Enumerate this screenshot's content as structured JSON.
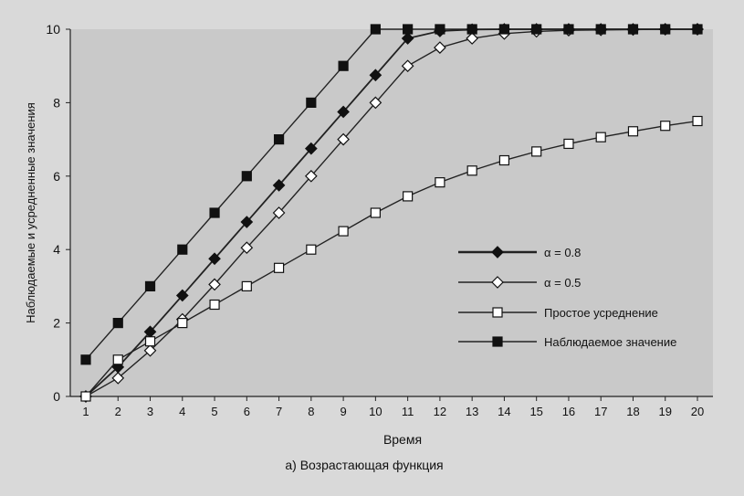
{
  "chart_data": {
    "type": "line",
    "xlabel": "Время",
    "ylabel": "Наблюдаемые и усредненные значения",
    "caption": "а) Возрастающая функция",
    "x": [
      1,
      2,
      3,
      4,
      5,
      6,
      7,
      8,
      9,
      10,
      11,
      12,
      13,
      14,
      15,
      16,
      17,
      18,
      19,
      20
    ],
    "xlim": [
      1,
      20
    ],
    "ylim": [
      0,
      10
    ],
    "yticks": [
      0,
      2,
      4,
      6,
      8,
      10
    ],
    "grid": false,
    "legend_position": "right-bottom",
    "series": [
      {
        "name": "α = 0.8",
        "marker": "diamond-filled",
        "values": [
          0,
          0.8,
          1.76,
          2.75,
          3.75,
          4.75,
          5.75,
          6.75,
          7.75,
          8.75,
          9.75,
          9.95,
          9.99,
          10,
          10,
          10,
          10,
          10,
          10,
          10
        ]
      },
      {
        "name": "α = 0.5",
        "marker": "diamond-open",
        "values": [
          0,
          0.5,
          1.25,
          2.1,
          3.05,
          4.05,
          5.0,
          6.0,
          7.0,
          8.0,
          9.0,
          9.5,
          9.75,
          9.88,
          9.94,
          9.97,
          9.98,
          9.99,
          10,
          10
        ]
      },
      {
        "name": "Простое усреднение",
        "marker": "square-open",
        "values": [
          0,
          1.0,
          1.5,
          2.0,
          2.5,
          3.0,
          3.5,
          4.0,
          4.5,
          5.0,
          5.45,
          5.83,
          6.15,
          6.43,
          6.67,
          6.88,
          7.06,
          7.22,
          7.37,
          7.5
        ]
      },
      {
        "name": "Наблюдаемое значение",
        "marker": "square-filled",
        "values": [
          1,
          2,
          3,
          4,
          5,
          6,
          7,
          8,
          9,
          10,
          10,
          10,
          10,
          10,
          10,
          10,
          10,
          10,
          10,
          10
        ]
      }
    ]
  }
}
